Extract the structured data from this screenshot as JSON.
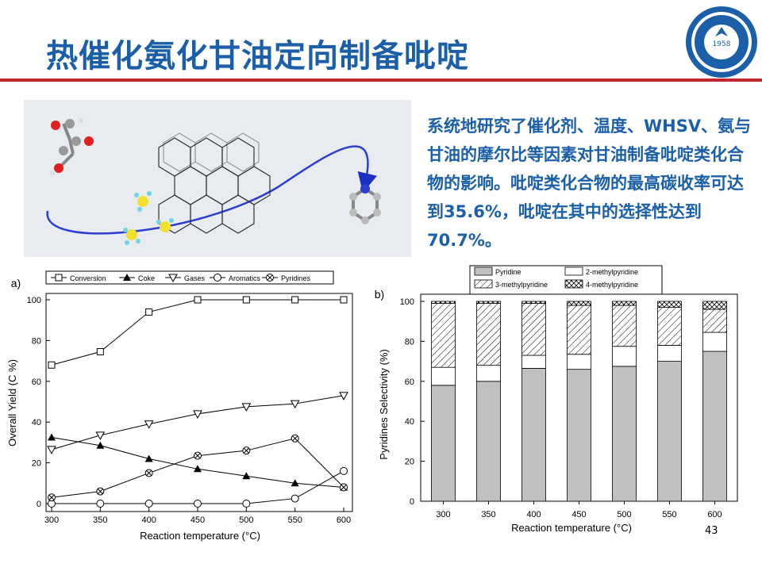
{
  "slide": {
    "title": "热催化氨化甘油定向制备吡啶",
    "description": "系统地研究了催化剂、温度、WHSV、氨与甘油的摩尔比等因素对甘油制备吡啶类化合物的影响。吡啶类化合物的最高碳收率可达到35.6%，吡啶在其中的选择性达到70.7%。",
    "page_number": "43",
    "logo_text": "1958",
    "colors": {
      "title": "#1a5fa8",
      "rule": "#c0272d",
      "description": "#1a5fa8"
    }
  },
  "chart_data": [
    {
      "panel_label": "a)",
      "type": "line",
      "x": [
        300,
        350,
        400,
        450,
        500,
        550,
        600
      ],
      "xlabel": "Reaction temperature (°C)",
      "ylabel": "Overall Yield (C %)",
      "xlim": [
        300,
        600
      ],
      "ylim": [
        0,
        100
      ],
      "xticks": [
        300,
        350,
        400,
        450,
        500,
        550,
        600
      ],
      "yticks": [
        0,
        20,
        40,
        60,
        80,
        100
      ],
      "legend_position": "top",
      "series": [
        {
          "name": "Conversion",
          "marker": "square",
          "values": [
            68,
            74.5,
            94,
            100,
            100,
            100,
            100
          ]
        },
        {
          "name": "Coke",
          "marker": "triangle-filled",
          "values": [
            32.5,
            28.5,
            22,
            17,
            13.5,
            10,
            8
          ]
        },
        {
          "name": "Gases",
          "marker": "triangle-down",
          "values": [
            26.5,
            33.5,
            39,
            44,
            47.5,
            49,
            53
          ]
        },
        {
          "name": "Aromatics",
          "marker": "circle",
          "values": [
            0,
            0,
            0,
            0,
            0,
            2.5,
            16
          ]
        },
        {
          "name": "Pyridines",
          "marker": "circle-x",
          "values": [
            3,
            6,
            15,
            23.5,
            26,
            32,
            8
          ]
        }
      ]
    },
    {
      "panel_label": "b)",
      "type": "bar",
      "stacked": true,
      "categories": [
        "300",
        "350",
        "400",
        "450",
        "500",
        "550",
        "600"
      ],
      "xlabel": "Reaction temperature (°C)",
      "ylabel": "Pyridines Selectivity (%)",
      "ylim": [
        0,
        100
      ],
      "yticks": [
        0,
        20,
        40,
        60,
        80,
        100
      ],
      "legend_position": "top",
      "series": [
        {
          "name": "Pyridine",
          "fill": "#c0c0c0",
          "values": [
            58,
            60,
            66.5,
            66,
            67.5,
            70,
            75
          ]
        },
        {
          "name": "2-methylpyridine",
          "fill": "#ffffff",
          "values": [
            9,
            8,
            6.5,
            7.5,
            10,
            8,
            9.5
          ]
        },
        {
          "name": "3-methylpyridine",
          "fill": "hatch",
          "values": [
            32,
            31,
            26,
            24.5,
            20.5,
            19,
            11.5
          ]
        },
        {
          "name": "4-methylpyridine",
          "fill": "crosshatch",
          "values": [
            1,
            1,
            1,
            2,
            2,
            3,
            4
          ]
        }
      ]
    }
  ]
}
